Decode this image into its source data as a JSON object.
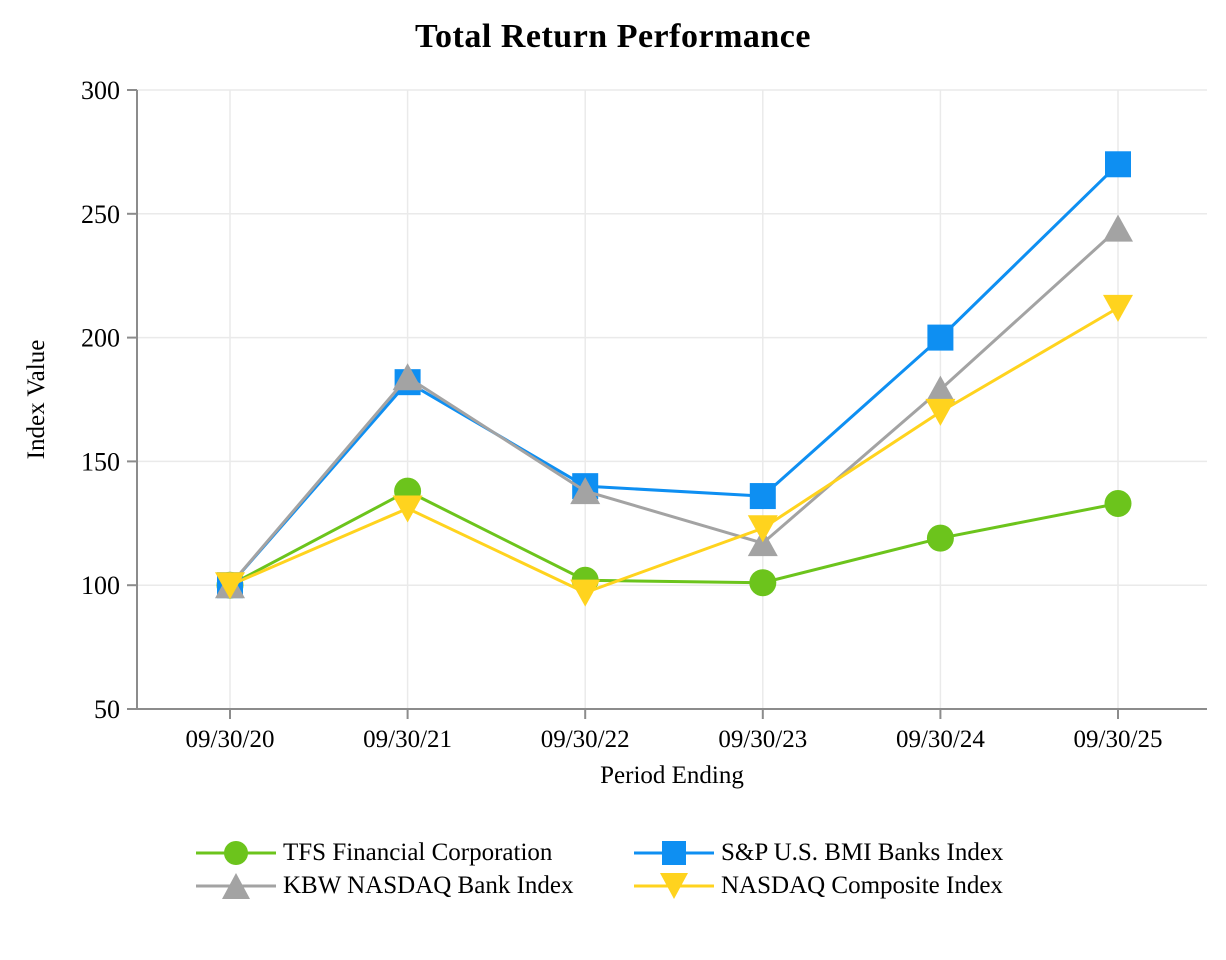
{
  "chart_data": {
    "type": "line",
    "title": "Total Return Performance",
    "xlabel": "Period Ending",
    "ylabel": "Index Value",
    "categories": [
      "09/30/20",
      "09/30/21",
      "09/30/22",
      "09/30/23",
      "09/30/24",
      "09/30/25"
    ],
    "y_ticks": [
      50,
      100,
      150,
      200,
      250,
      300
    ],
    "ylim": [
      50,
      300
    ],
    "grid": true,
    "legend_position": "bottom",
    "series": [
      {
        "name": "TFS Financial Corporation",
        "marker": "circle",
        "color": "#6CC41C",
        "values": [
          100,
          138,
          102,
          101,
          119,
          133
        ]
      },
      {
        "name": "S&P U.S. BMI Banks Index",
        "marker": "square",
        "color": "#0E8FF2",
        "values": [
          100,
          182,
          140,
          136,
          200,
          270
        ]
      },
      {
        "name": "KBW NASDAQ Bank Index",
        "marker": "triangle-up",
        "color": "#A3A3A3",
        "values": [
          100,
          184,
          138,
          117,
          179,
          244
        ]
      },
      {
        "name": "NASDAQ Composite Index",
        "marker": "triangle-down",
        "color": "#FFD31E",
        "values": [
          100,
          131,
          97,
          123,
          170,
          212
        ]
      }
    ]
  },
  "style_colors": {
    "axis": "#8C8C8C",
    "grid": "#EAEAEA",
    "text": "#000000",
    "background": "#FFFFFF"
  }
}
